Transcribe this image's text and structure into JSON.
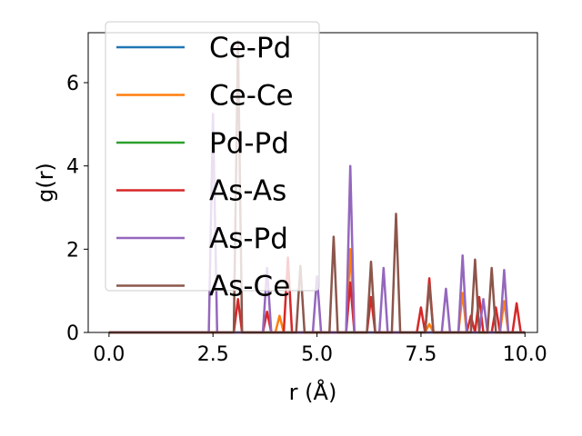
{
  "chart_data": {
    "type": "line",
    "xlabel": "r (Å)",
    "ylabel": "g(r)",
    "xlim": [
      -0.5,
      10.3
    ],
    "ylim": [
      0,
      7.2
    ],
    "xticks": [
      0.0,
      2.5,
      5.0,
      7.5,
      10.0
    ],
    "xtick_labels": [
      "0.0",
      "2.5",
      "5.0",
      "7.5",
      "10.0"
    ],
    "yticks": [
      0,
      2,
      4,
      6
    ],
    "ytick_labels": [
      "0",
      "2",
      "4",
      "6"
    ],
    "grid": false,
    "legend_position": "upper-left",
    "peak_halfwidth": 0.1,
    "x_end": 10.0,
    "series": [
      {
        "name": "Ce-Pd",
        "color": "#1f77b4",
        "peaks": []
      },
      {
        "name": "Ce-Ce",
        "color": "#ff7f0e",
        "peaks": [
          [
            4.1,
            0.4
          ],
          [
            5.8,
            2.0
          ],
          [
            7.7,
            0.2
          ],
          [
            8.5,
            0.95
          ],
          [
            9.5,
            0.75
          ]
        ]
      },
      {
        "name": "Pd-Pd",
        "color": "#2ca02c",
        "peaks": []
      },
      {
        "name": "As-As",
        "color": "#d62728",
        "peaks": [
          [
            3.1,
            0.8
          ],
          [
            3.8,
            0.5
          ],
          [
            4.3,
            1.8
          ],
          [
            5.8,
            1.2
          ],
          [
            6.3,
            0.85
          ],
          [
            7.5,
            0.6
          ],
          [
            7.7,
            1.3
          ],
          [
            8.7,
            0.4
          ],
          [
            8.9,
            0.85
          ],
          [
            9.3,
            0.6
          ],
          [
            9.8,
            0.7
          ]
        ]
      },
      {
        "name": "As-Pd",
        "color": "#9467bd",
        "peaks": [
          [
            2.5,
            5.25
          ],
          [
            3.8,
            1.55
          ],
          [
            5.0,
            1.35
          ],
          [
            5.8,
            4.0
          ],
          [
            6.6,
            1.55
          ],
          [
            8.1,
            1.05
          ],
          [
            8.5,
            1.85
          ],
          [
            9.0,
            0.8
          ],
          [
            9.5,
            1.5
          ]
        ]
      },
      {
        "name": "As-Ce",
        "color": "#8c564b",
        "peaks": [
          [
            3.1,
            7.0
          ],
          [
            4.6,
            1.6
          ],
          [
            5.4,
            2.3
          ],
          [
            6.3,
            1.7
          ],
          [
            6.9,
            2.85
          ],
          [
            7.7,
            1.15
          ],
          [
            8.8,
            1.75
          ],
          [
            9.2,
            1.55
          ]
        ]
      }
    ]
  }
}
